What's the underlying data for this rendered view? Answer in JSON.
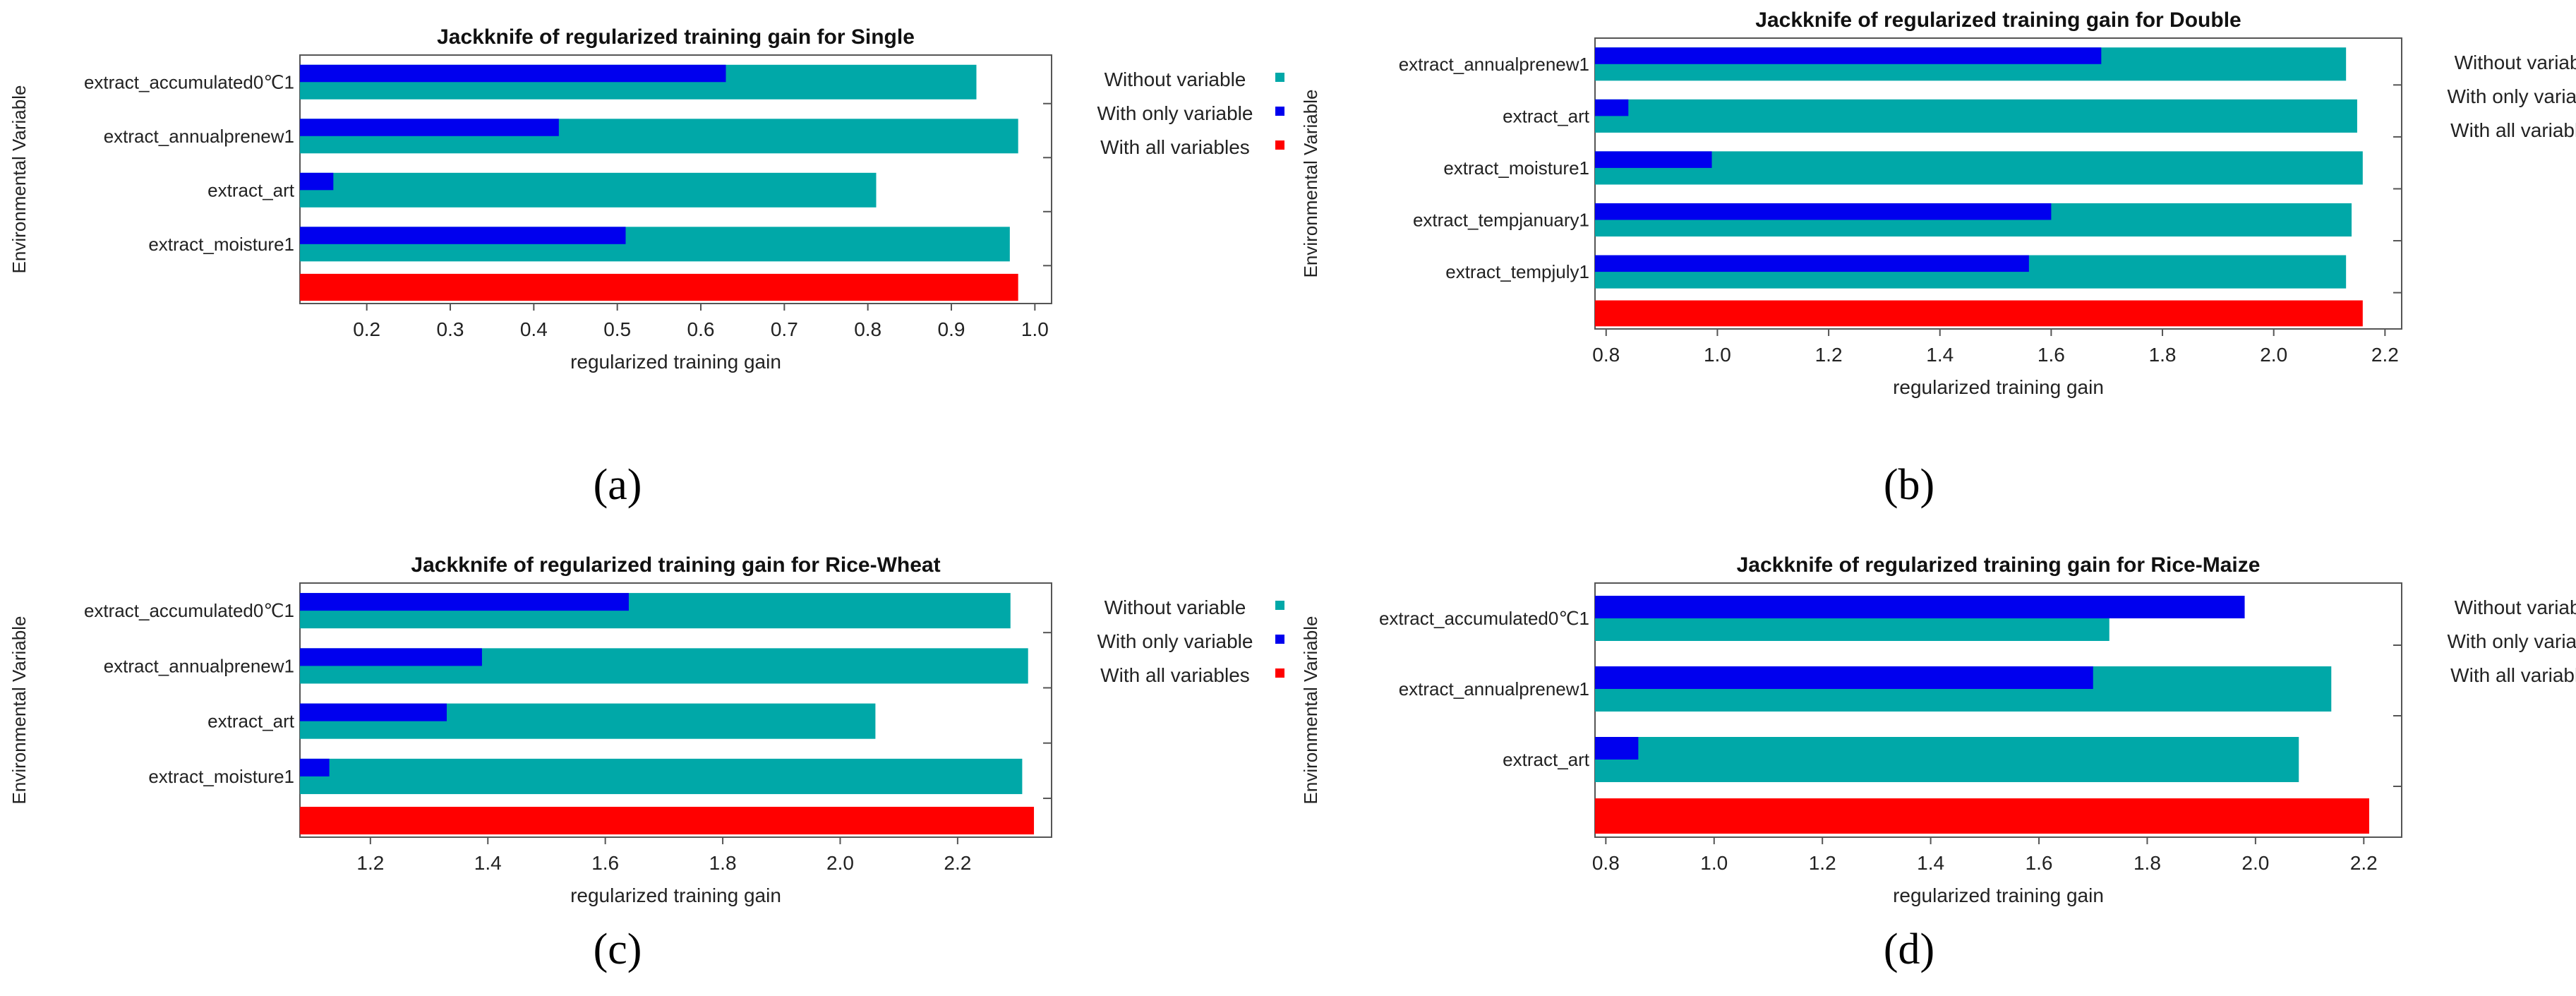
{
  "colors": {
    "without": "#00a8a8",
    "with_only": "#0000ee",
    "all": "#ff0000"
  },
  "panel_labels": [
    "(a)",
    "(b)",
    "(c)",
    "(d)"
  ],
  "chart_data": [
    {
      "type": "bar",
      "title": "Jackknife of regularized training gain for Single",
      "xlabel": "regularized training gain",
      "ylabel": "Environmental Variable",
      "xlim": [
        0.12,
        1.02
      ],
      "xticks": [
        0.2,
        0.3,
        0.4,
        0.5,
        0.6,
        0.7,
        0.8,
        0.9,
        1.0
      ],
      "xtick_labels": [
        "0.2",
        "0.3",
        "0.4",
        "0.5",
        "0.6",
        "0.7",
        "0.8",
        "0.9",
        "1.0"
      ],
      "categories": [
        "extract_accumulated0℃1",
        "extract_annualprenew1",
        "extract_art",
        "extract_moisture1"
      ],
      "series": [
        {
          "name": "Without variable",
          "values": [
            0.93,
            0.98,
            0.81,
            0.97
          ]
        },
        {
          "name": "With only variable",
          "values": [
            0.63,
            0.43,
            0.16,
            0.51
          ]
        }
      ],
      "all_variables": 0.98,
      "legend": [
        "Without variable",
        "With only variable",
        "With all variables"
      ],
      "legend_position": "right",
      "grid": false
    },
    {
      "type": "bar",
      "title": "Jackknife of regularized training gain for Double",
      "xlabel": "regularized training gain",
      "ylabel": "Environmental Variable",
      "xlim": [
        0.78,
        2.23
      ],
      "xticks": [
        0.8,
        1.0,
        1.2,
        1.4,
        1.6,
        1.8,
        2.0,
        2.2
      ],
      "xtick_labels": [
        "0.8",
        "1.0",
        "1.2",
        "1.4",
        "1.6",
        "1.8",
        "2.0",
        "2.2"
      ],
      "categories": [
        "extract_annualprenew1",
        "extract_art",
        "extract_moisture1",
        "extract_tempjanuary1",
        "extract_tempjuly1"
      ],
      "series": [
        {
          "name": "Without variable",
          "values": [
            2.13,
            2.15,
            2.16,
            2.14,
            2.13
          ]
        },
        {
          "name": "With only variable",
          "values": [
            1.69,
            0.84,
            0.99,
            1.6,
            1.56
          ]
        }
      ],
      "all_variables": 2.16,
      "legend": [
        "Without variable",
        "With only variable",
        "With all variables"
      ],
      "legend_position": "right",
      "grid": false
    },
    {
      "type": "bar",
      "title": "Jackknife of regularized training gain for Rice-Wheat",
      "xlabel": "regularized training gain",
      "ylabel": "Environmental Variable",
      "xlim": [
        1.08,
        2.36
      ],
      "xticks": [
        1.2,
        1.4,
        1.6,
        1.8,
        2.0,
        2.2
      ],
      "xtick_labels": [
        "1.2",
        "1.4",
        "1.6",
        "1.8",
        "2.0",
        "2.2"
      ],
      "categories": [
        "extract_accumulated0℃1",
        "extract_annualprenew1",
        "extract_art",
        "extract_moisture1"
      ],
      "series": [
        {
          "name": "Without variable",
          "values": [
            2.29,
            2.32,
            2.06,
            2.31
          ]
        },
        {
          "name": "With only variable",
          "values": [
            1.64,
            1.39,
            1.33,
            1.13
          ]
        }
      ],
      "all_variables": 2.33,
      "legend": [
        "Without variable",
        "With only variable",
        "With all variables"
      ],
      "legend_position": "right",
      "grid": false
    },
    {
      "type": "bar",
      "title": "Jackknife of regularized training gain for Rice-Maize",
      "xlabel": "regularized training gain",
      "ylabel": "Environmental Variable",
      "xlim": [
        0.78,
        2.27
      ],
      "xticks": [
        0.8,
        1.0,
        1.2,
        1.4,
        1.6,
        1.8,
        2.0,
        2.2
      ],
      "xtick_labels": [
        "0.8",
        "1.0",
        "1.2",
        "1.4",
        "1.6",
        "1.8",
        "2.0",
        "2.2"
      ],
      "categories": [
        "extract_accumulated0℃1",
        "extract_annualprenew1",
        "extract_art"
      ],
      "series": [
        {
          "name": "Without variable",
          "values": [
            1.73,
            2.14,
            2.08
          ]
        },
        {
          "name": "With only variable",
          "values": [
            1.98,
            1.7,
            0.86
          ]
        }
      ],
      "all_variables": 2.21,
      "legend": [
        "Without variable",
        "With only variable",
        "With all variables"
      ],
      "legend_position": "right",
      "grid": false
    }
  ]
}
